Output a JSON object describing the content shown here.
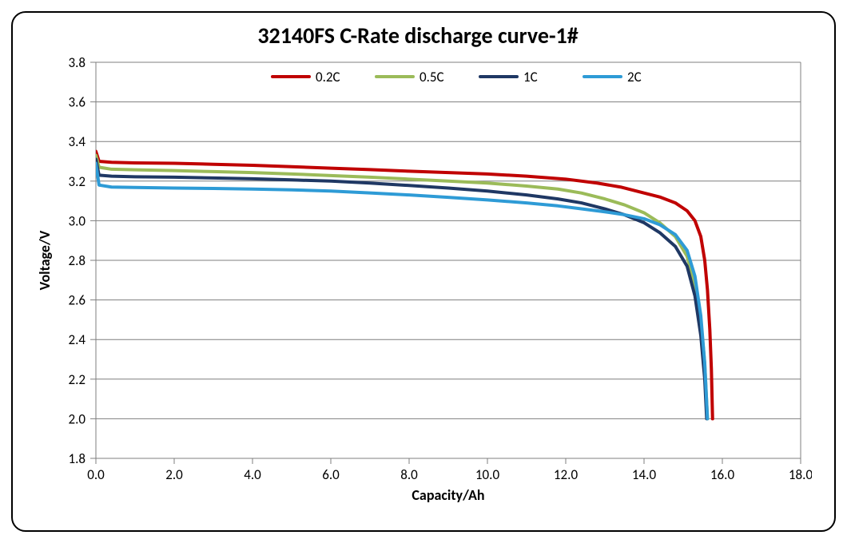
{
  "chart": {
    "type": "line",
    "title": "32140FS C-Rate discharge curve-1#",
    "title_fontsize": 28,
    "title_fontweight": "700",
    "title_color": "#000000",
    "background_color": "#ffffff",
    "panel_border_color": "#000000",
    "panel_border_width": 2,
    "panel_border_radius": 18,
    "plot_border_color": "#7f7f7f",
    "plot_border_width": 1,
    "grid_color": "#7f7f7f",
    "grid_width": 1,
    "tick_color": "#7f7f7f",
    "tick_length": 7,
    "tick_font_size": 17,
    "axis_label_font_size": 18,
    "axis_label_font_weight": "700",
    "x_axis": {
      "label": "Capacity/Ah",
      "min": 0.0,
      "max": 18.0,
      "tick_step": 2.0,
      "ticks": [
        "0.0",
        "2.0",
        "4.0",
        "6.0",
        "8.0",
        "10.0",
        "12.0",
        "14.0",
        "16.0",
        "18.0"
      ]
    },
    "y_axis": {
      "label": "Voltage/V",
      "min": 1.8,
      "max": 3.8,
      "tick_step": 0.2,
      "ticks": [
        "1.8",
        "2.0",
        "2.2",
        "2.4",
        "2.6",
        "2.8",
        "3.0",
        "3.2",
        "3.4",
        "3.6",
        "3.8"
      ]
    },
    "legend": {
      "position": "top-center-inside",
      "font_size": 17,
      "line_length": 46,
      "line_width": 4,
      "items": [
        {
          "label": "0.2C",
          "color": "#c00000"
        },
        {
          "label": "0.5C",
          "color": "#9bbb59"
        },
        {
          "label": "1C",
          "color": "#1f3864"
        },
        {
          "label": "2C",
          "color": "#2e9bd6"
        }
      ]
    },
    "line_width": 4,
    "series": [
      {
        "name": "0.2C",
        "color": "#c00000",
        "points": [
          [
            0.0,
            3.35
          ],
          [
            0.08,
            3.3
          ],
          [
            0.4,
            3.295
          ],
          [
            1.0,
            3.292
          ],
          [
            2.0,
            3.29
          ],
          [
            3.0,
            3.285
          ],
          [
            4.0,
            3.28
          ],
          [
            5.0,
            3.273
          ],
          [
            6.0,
            3.265
          ],
          [
            7.0,
            3.258
          ],
          [
            8.0,
            3.25
          ],
          [
            9.0,
            3.243
          ],
          [
            10.0,
            3.236
          ],
          [
            11.0,
            3.225
          ],
          [
            12.0,
            3.21
          ],
          [
            12.8,
            3.19
          ],
          [
            13.4,
            3.17
          ],
          [
            14.0,
            3.14
          ],
          [
            14.4,
            3.12
          ],
          [
            14.8,
            3.09
          ],
          [
            15.1,
            3.05
          ],
          [
            15.3,
            3.0
          ],
          [
            15.45,
            2.92
          ],
          [
            15.55,
            2.8
          ],
          [
            15.62,
            2.65
          ],
          [
            15.68,
            2.45
          ],
          [
            15.72,
            2.25
          ],
          [
            15.75,
            2.0
          ]
        ]
      },
      {
        "name": "0.5C",
        "color": "#9bbb59",
        "points": [
          [
            0.0,
            3.33
          ],
          [
            0.08,
            3.27
          ],
          [
            0.4,
            3.26
          ],
          [
            1.0,
            3.257
          ],
          [
            2.0,
            3.253
          ],
          [
            3.0,
            3.248
          ],
          [
            4.0,
            3.243
          ],
          [
            5.0,
            3.236
          ],
          [
            6.0,
            3.228
          ],
          [
            7.0,
            3.22
          ],
          [
            8.0,
            3.21
          ],
          [
            9.0,
            3.2
          ],
          [
            10.0,
            3.19
          ],
          [
            11.0,
            3.175
          ],
          [
            11.8,
            3.16
          ],
          [
            12.4,
            3.14
          ],
          [
            13.0,
            3.11
          ],
          [
            13.5,
            3.08
          ],
          [
            14.0,
            3.04
          ],
          [
            14.4,
            2.99
          ],
          [
            14.8,
            2.92
          ],
          [
            15.1,
            2.82
          ],
          [
            15.3,
            2.68
          ],
          [
            15.45,
            2.5
          ],
          [
            15.55,
            2.28
          ],
          [
            15.62,
            2.0
          ]
        ]
      },
      {
        "name": "1C",
        "color": "#1f3864",
        "points": [
          [
            0.0,
            3.31
          ],
          [
            0.08,
            3.23
          ],
          [
            0.4,
            3.225
          ],
          [
            1.0,
            3.222
          ],
          [
            2.0,
            3.22
          ],
          [
            3.0,
            3.216
          ],
          [
            4.0,
            3.212
          ],
          [
            5.0,
            3.206
          ],
          [
            6.0,
            3.2
          ],
          [
            7.0,
            3.19
          ],
          [
            8.0,
            3.178
          ],
          [
            9.0,
            3.165
          ],
          [
            10.0,
            3.15
          ],
          [
            11.0,
            3.13
          ],
          [
            11.8,
            3.11
          ],
          [
            12.4,
            3.09
          ],
          [
            13.0,
            3.06
          ],
          [
            13.5,
            3.03
          ],
          [
            14.0,
            2.99
          ],
          [
            14.4,
            2.94
          ],
          [
            14.8,
            2.87
          ],
          [
            15.1,
            2.77
          ],
          [
            15.3,
            2.62
          ],
          [
            15.45,
            2.42
          ],
          [
            15.55,
            2.2
          ],
          [
            15.6,
            2.0
          ]
        ]
      },
      {
        "name": "2C",
        "color": "#2e9bd6",
        "points": [
          [
            0.0,
            3.29
          ],
          [
            0.08,
            3.18
          ],
          [
            0.4,
            3.17
          ],
          [
            1.0,
            3.168
          ],
          [
            2.0,
            3.165
          ],
          [
            3.0,
            3.163
          ],
          [
            4.0,
            3.16
          ],
          [
            5.0,
            3.156
          ],
          [
            6.0,
            3.15
          ],
          [
            7.0,
            3.14
          ],
          [
            8.0,
            3.13
          ],
          [
            9.0,
            3.118
          ],
          [
            10.0,
            3.105
          ],
          [
            11.0,
            3.09
          ],
          [
            11.8,
            3.075
          ],
          [
            12.4,
            3.06
          ],
          [
            13.0,
            3.045
          ],
          [
            13.5,
            3.03
          ],
          [
            14.0,
            3.01
          ],
          [
            14.4,
            2.98
          ],
          [
            14.8,
            2.93
          ],
          [
            15.1,
            2.85
          ],
          [
            15.3,
            2.72
          ],
          [
            15.45,
            2.52
          ],
          [
            15.55,
            2.28
          ],
          [
            15.62,
            2.0
          ]
        ]
      }
    ]
  }
}
